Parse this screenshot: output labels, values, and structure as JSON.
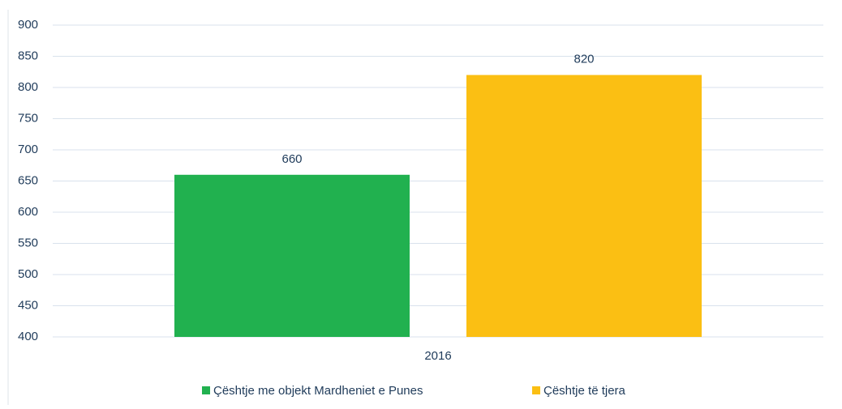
{
  "chart_data": {
    "type": "bar",
    "categories": [
      "2016"
    ],
    "series": [
      {
        "name": "Çështje me objekt Mardheniet e Punes",
        "color": "#21b14f",
        "values": [
          660
        ]
      },
      {
        "name": "Çështje të tjera",
        "color": "#fbbf13",
        "values": [
          820
        ]
      }
    ],
    "ylim": [
      400,
      900
    ],
    "yticks": [
      400,
      450,
      500,
      550,
      600,
      650,
      700,
      750,
      800,
      850,
      900
    ],
    "grid": true,
    "legend": "bottom"
  }
}
